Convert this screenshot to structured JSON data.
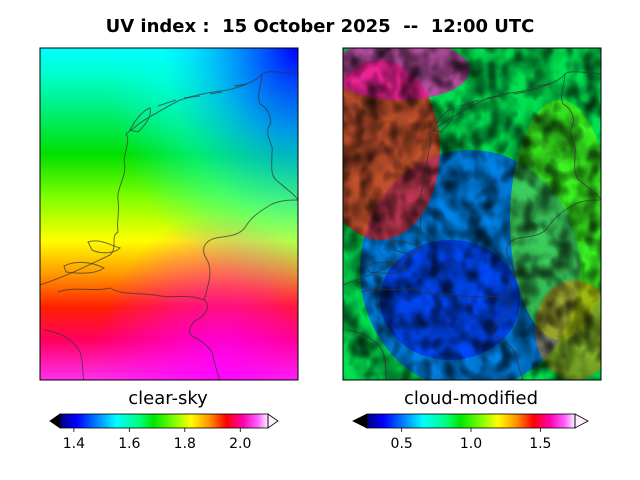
{
  "title": "UV index :  15 October 2025  --  12:00 UTC",
  "chart_data": [
    {
      "type": "heatmap",
      "name": "clear-sky",
      "label": "clear-sky",
      "region": "Netherlands",
      "colormap": "gist_ncar",
      "colorbar": {
        "range": [
          1.35,
          2.1
        ],
        "ticks": [
          1.4,
          1.6,
          1.8,
          2.0
        ],
        "tick_labels": [
          "1.4",
          "1.6",
          "1.8",
          "2.0"
        ],
        "extend": "both"
      },
      "gradient": {
        "direction": "north-to-south",
        "north_value": 1.45,
        "south_value": 2.05
      }
    },
    {
      "type": "heatmap",
      "name": "cloud-modified",
      "label": "cloud-modified",
      "region": "Netherlands",
      "colormap": "gist_ncar",
      "colorbar": {
        "range": [
          0.25,
          1.75
        ],
        "ticks": [
          0.5,
          1.0,
          1.5
        ],
        "tick_labels": [
          "0.5",
          "1.0",
          "1.5"
        ],
        "extend": "both"
      },
      "pattern": "patchy-clouds"
    }
  ]
}
